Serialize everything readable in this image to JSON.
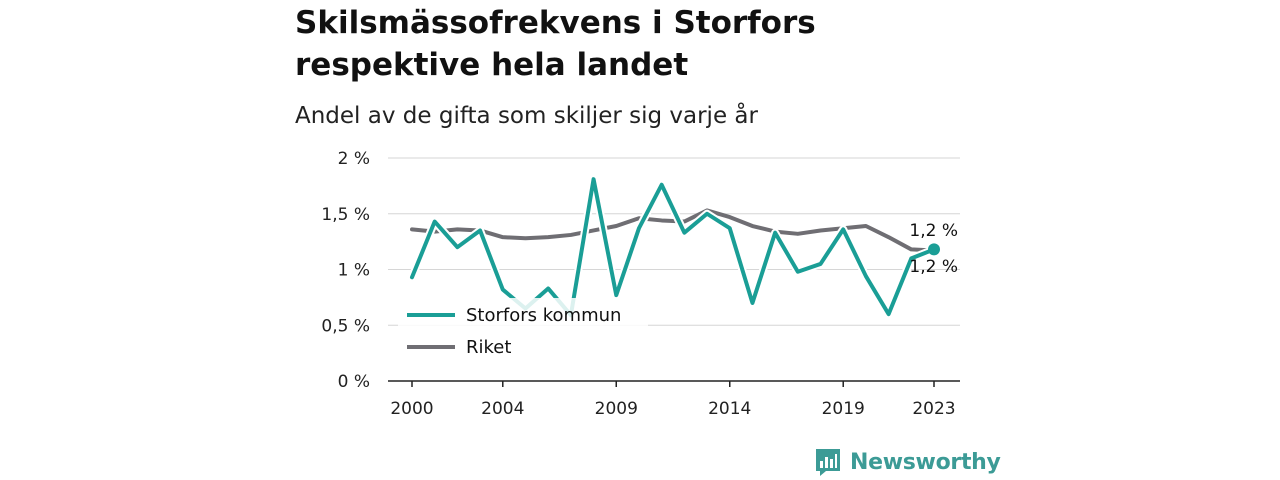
{
  "title": "Skilsmässofrekvens i Storfors respektive hela landet",
  "subtitle": "Andel av de gifta som skiljer sig varje år",
  "brand": {
    "name": "Newsworthy",
    "color": "#3c9b96",
    "icon": "newsworthy-logo-icon"
  },
  "chart_data": {
    "type": "line",
    "x": [
      2000,
      2001,
      2002,
      2003,
      2004,
      2005,
      2006,
      2007,
      2008,
      2009,
      2010,
      2011,
      2012,
      2013,
      2014,
      2015,
      2016,
      2017,
      2018,
      2019,
      2020,
      2021,
      2022,
      2023
    ],
    "x_ticks": [
      "2000",
      "2004",
      "2009",
      "2014",
      "2019",
      "2023"
    ],
    "y_ticks": [
      "0 %",
      "0,5 %",
      "1 %",
      "1,5 %",
      "2 %"
    ],
    "y_tick_values": [
      0,
      0.5,
      1,
      1.5,
      2
    ],
    "ylim": [
      0,
      2
    ],
    "grid": true,
    "legend_position": "bottom-left",
    "series": [
      {
        "name": "Storfors kommun",
        "color": "#1a9e96",
        "values": [
          0.93,
          1.43,
          1.2,
          1.35,
          0.82,
          0.65,
          0.83,
          0.59,
          1.81,
          0.77,
          1.37,
          1.76,
          1.33,
          1.5,
          1.37,
          0.7,
          1.33,
          0.98,
          1.05,
          1.36,
          0.94,
          0.6,
          1.1,
          1.18
        ],
        "end_label": "1,2 %"
      },
      {
        "name": "Riket",
        "color": "#6f6e73",
        "values": [
          1.36,
          1.34,
          1.36,
          1.35,
          1.29,
          1.28,
          1.29,
          1.31,
          1.35,
          1.39,
          1.46,
          1.44,
          1.43,
          1.53,
          1.47,
          1.39,
          1.34,
          1.32,
          1.35,
          1.37,
          1.39,
          1.29,
          1.18,
          1.17
        ],
        "end_label": "1,2 %"
      }
    ]
  }
}
